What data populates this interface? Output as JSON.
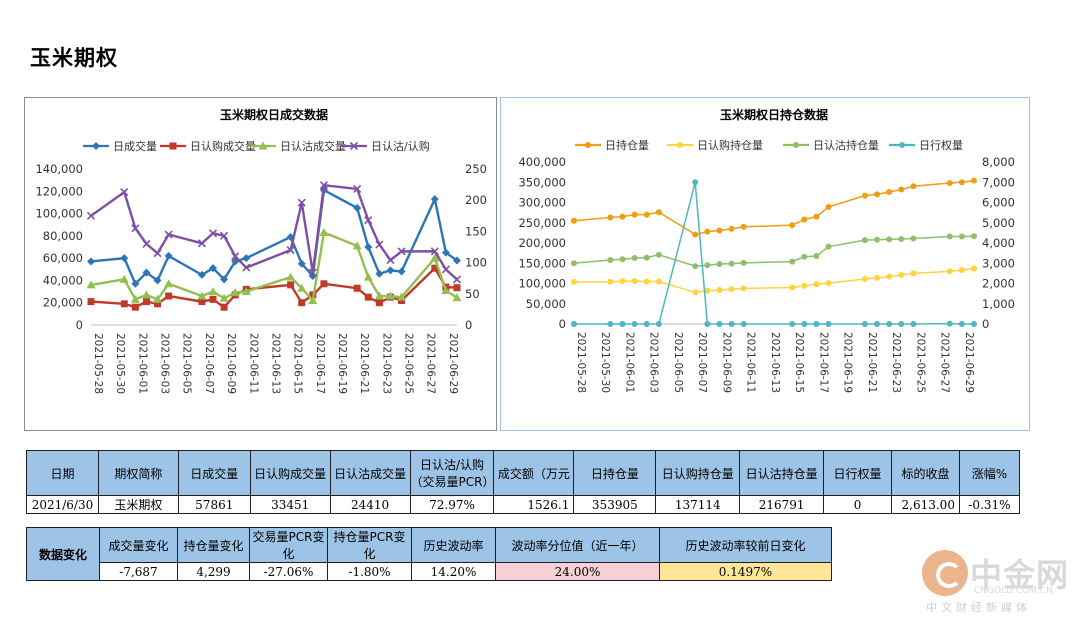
{
  "page": {
    "title": "玉米期权"
  },
  "chart_data": [
    {
      "type": "line",
      "title": "玉米期权日成交数据",
      "x": [
        "2021-05-28",
        "2021-05-31",
        "2021-06-01",
        "2021-06-02",
        "2021-06-03",
        "2021-06-04",
        "2021-06-07",
        "2021-06-08",
        "2021-06-09",
        "2021-06-10",
        "2021-06-11",
        "2021-06-15",
        "2021-06-16",
        "2021-06-17",
        "2021-06-18",
        "2021-06-21",
        "2021-06-22",
        "2021-06-23",
        "2021-06-24",
        "2021-06-25",
        "2021-06-28",
        "2021-06-29",
        "2021-06-30"
      ],
      "x_tick_labels": [
        "2021-05-28",
        "2021-05-30",
        "2021-06-01",
        "2021-06-03",
        "2021-06-05",
        "2021-06-07",
        "2021-06-09",
        "2021-06-11",
        "2021-06-13",
        "2021-06-15",
        "2021-06-17",
        "2021-06-19",
        "2021-06-21",
        "2021-06-23",
        "2021-06-25",
        "2021-06-27",
        "2021-06-29"
      ],
      "x_range": [
        "2021-05-28",
        "2021-06-30"
      ],
      "y_left": {
        "ticks": [
          "0",
          "20,000",
          "40,000",
          "60,000",
          "80,000",
          "100,000",
          "120,000",
          "140,000"
        ],
        "range": [
          0,
          140000
        ]
      },
      "y_right": {
        "ticks": [
          "0",
          "50",
          "100",
          "150",
          "200",
          "250"
        ],
        "range": [
          0,
          250
        ]
      },
      "legend_position": "top",
      "series": [
        {
          "name": "日成交量",
          "axis": "left",
          "color": "#2e75b6",
          "marker": "diamond",
          "values": [
            57000,
            60000,
            37000,
            47000,
            40000,
            62000,
            45000,
            51000,
            41000,
            57000,
            60000,
            79000,
            55000,
            44000,
            121000,
            105000,
            70000,
            46000,
            49000,
            48000,
            113000,
            65000,
            57861
          ]
        },
        {
          "name": "日认购成交量",
          "axis": "left",
          "color": "#c0392b",
          "marker": "square",
          "values": [
            21000,
            19000,
            16000,
            21000,
            19000,
            26000,
            21000,
            23000,
            16000,
            27000,
            32000,
            36000,
            20000,
            27000,
            37000,
            33000,
            25000,
            20000,
            25000,
            22000,
            51000,
            34000,
            33451
          ]
        },
        {
          "name": "日认沽成交量",
          "axis": "left",
          "color": "#92c050",
          "marker": "triangle",
          "values": [
            36000,
            41000,
            23000,
            27000,
            23000,
            37000,
            26000,
            30000,
            24000,
            29000,
            30000,
            43000,
            33000,
            22000,
            83000,
            71000,
            43000,
            26000,
            26000,
            25000,
            60000,
            31000,
            24410
          ]
        },
        {
          "name": "日认沽/认购",
          "axis": "right",
          "color": "#7f4fa6",
          "marker": "x",
          "values": [
            175,
            213,
            155,
            130,
            115,
            145,
            131,
            147,
            143,
            110,
            92,
            120,
            196,
            84,
            224,
            218,
            168,
            129,
            104,
            118,
            118,
            89,
            73
          ]
        }
      ]
    },
    {
      "type": "line",
      "title": "玉米期权日持仓数据",
      "x": [
        "2021-05-28",
        "2021-05-31",
        "2021-06-01",
        "2021-06-02",
        "2021-06-03",
        "2021-06-04",
        "2021-06-07",
        "2021-06-08",
        "2021-06-09",
        "2021-06-10",
        "2021-06-11",
        "2021-06-15",
        "2021-06-16",
        "2021-06-17",
        "2021-06-18",
        "2021-06-21",
        "2021-06-22",
        "2021-06-23",
        "2021-06-24",
        "2021-06-25",
        "2021-06-28",
        "2021-06-29",
        "2021-06-30"
      ],
      "x_tick_labels": [
        "2021-05-28",
        "2021-05-30",
        "2021-06-01",
        "2021-06-03",
        "2021-06-05",
        "2021-06-07",
        "2021-06-09",
        "2021-06-11",
        "2021-06-13",
        "2021-06-15",
        "2021-06-17",
        "2021-06-19",
        "2021-06-21",
        "2021-06-23",
        "2021-06-25",
        "2021-06-27",
        "2021-06-29"
      ],
      "x_range": [
        "2021-05-28",
        "2021-06-30"
      ],
      "y_left": {
        "ticks": [
          "0",
          "50,000",
          "100,000",
          "150,000",
          "200,000",
          "250,000",
          "300,000",
          "350,000",
          "400,000"
        ],
        "range": [
          0,
          400000
        ]
      },
      "y_right": {
        "ticks": [
          "0",
          "1,000",
          "2,000",
          "3,000",
          "4,000",
          "5,000",
          "6,000",
          "7,000",
          "8,000"
        ],
        "range": [
          0,
          8000
        ]
      },
      "legend_position": "top",
      "series": [
        {
          "name": "日持仓量",
          "axis": "left",
          "color": "#f39c12",
          "marker": "circle",
          "values": [
            255000,
            263000,
            265000,
            270000,
            270000,
            276000,
            221000,
            228000,
            231000,
            235000,
            240000,
            244000,
            258000,
            265000,
            289000,
            317000,
            320000,
            326000,
            332000,
            340000,
            348000,
            350000,
            353905
          ]
        },
        {
          "name": "日认购持仓量",
          "axis": "left",
          "color": "#ffd23f",
          "marker": "circle",
          "values": [
            104000,
            104000,
            106000,
            106000,
            105000,
            105000,
            78000,
            82000,
            84000,
            86000,
            88000,
            90000,
            94000,
            98000,
            101000,
            111000,
            114000,
            117000,
            121000,
            125000,
            130000,
            133000,
            137114
          ]
        },
        {
          "name": "日认沽持仓量",
          "axis": "left",
          "color": "#8fbf6a",
          "marker": "circle",
          "values": [
            150000,
            158000,
            160000,
            163000,
            164000,
            171000,
            143000,
            145000,
            148000,
            149000,
            151000,
            154000,
            166000,
            168000,
            191000,
            207000,
            208000,
            209000,
            210000,
            211000,
            216000,
            216000,
            216791
          ]
        },
        {
          "name": "日行权量",
          "axis": "right",
          "color": "#4db6c4",
          "marker": "circle",
          "values": [
            0,
            0,
            0,
            0,
            0,
            0,
            7000,
            0,
            0,
            0,
            0,
            0,
            0,
            0,
            0,
            0,
            0,
            0,
            0,
            0,
            20,
            0,
            0
          ]
        }
      ]
    }
  ],
  "table1": {
    "headers": [
      "日期",
      "期权简称",
      "日成交量",
      "日认购成交量",
      "日认沽成交量",
      "日认沽/认购（交易量PCR）",
      "成交额（万元",
      "日持仓量",
      "日认购持仓量",
      "日认沽持仓量",
      "日行权量",
      "标的收盘",
      "涨幅%"
    ],
    "row": [
      "2021/6/30",
      "玉米期权",
      "57861",
      "33451",
      "24410",
      "72.97%",
      "1526.1",
      "353905",
      "137114",
      "216791",
      "0",
      "2,613.00",
      "-0.31%"
    ]
  },
  "table2": {
    "row_label": "数据变化",
    "headers": [
      "成交量变化",
      "持仓量变化",
      "交易量PCR变化",
      "持仓量PCR变化",
      "历史波动率",
      "波动率分位值（近一年）",
      "历史波动率较前日变化"
    ],
    "row": [
      "-7,687",
      "4,299",
      "-27.06%",
      "-1.80%",
      "14.20%",
      "24.00%",
      "0.1497%"
    ],
    "highlight_colors": {
      "percentile": "#f6cfd7",
      "hv_change": "#ffe699"
    }
  },
  "watermark": {
    "name": "中金网",
    "url": "CNGOLD.COM.CN",
    "subtitle": "中文财经新媒体"
  }
}
